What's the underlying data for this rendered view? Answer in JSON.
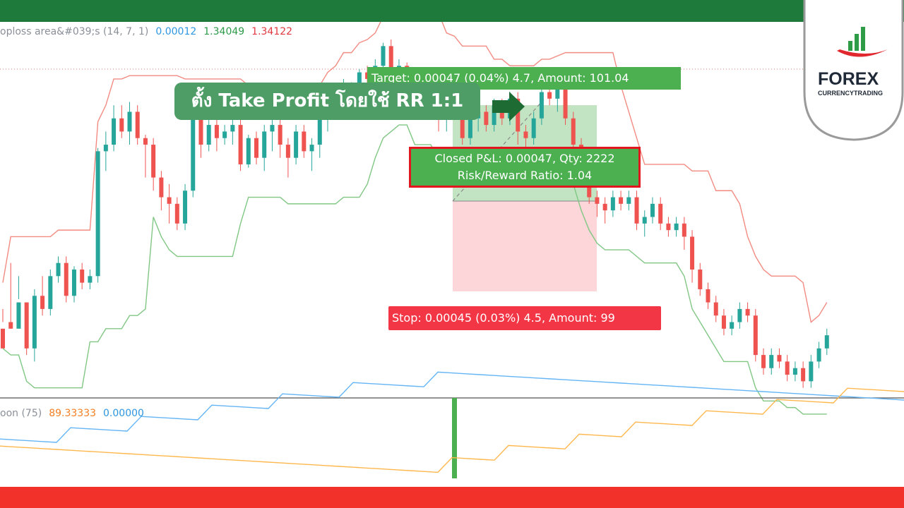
{
  "indicator_top": {
    "name": "oploss area&#039;s (14, 7, 1)",
    "v1": "0.00012",
    "v2": "1.34049",
    "v3": "1.34122"
  },
  "indicator_bottom": {
    "name": "oon (75)",
    "v1": "89.33333",
    "v2": "0.00000"
  },
  "callout": {
    "text": "ตั้ง Take Profit โดยใช้ RR 1:1"
  },
  "target_label": {
    "text": "Target: 0.00047 (0.04%) 4.7, Amount: 101.04"
  },
  "stop_label": {
    "text": "Stop: 0.00045 (0.03%) 4.5, Amount: 99"
  },
  "pnl": {
    "line1": "Closed P&L: 0.00047, Qty: 2222",
    "line2": "Risk/Reward Ratio: 1.04"
  },
  "logo": {
    "title": "FOREX",
    "subtitle": "CURRENCYTRADING"
  },
  "colors": {
    "up": "#26a69a",
    "down": "#ef5350",
    "upper_band": "#f28b82",
    "lower_band": "#81c784",
    "osc_blue": "#64b5f6",
    "osc_orange": "#ffb74d",
    "target_zone": "#b7dfb9",
    "stop_zone": "#fcd1d4"
  },
  "chart_data": {
    "type": "candlestick",
    "title": "",
    "candles": [
      [
        100,
        70,
        130,
        110
      ],
      [
        110,
        100,
        200,
        100
      ],
      [
        100,
        140,
        145,
        180
      ],
      [
        140,
        70,
        140,
        60
      ],
      [
        70,
        150,
        160,
        50
      ],
      [
        150,
        130,
        180,
        120
      ],
      [
        130,
        180,
        190,
        120
      ],
      [
        180,
        200,
        210,
        170
      ],
      [
        200,
        150,
        210,
        140
      ],
      [
        150,
        190,
        195,
        140
      ],
      [
        190,
        170,
        200,
        160
      ],
      [
        170,
        180,
        190,
        160
      ],
      [
        180,
        370,
        375,
        170
      ],
      [
        370,
        380,
        400,
        340
      ],
      [
        380,
        420,
        440,
        370
      ],
      [
        420,
        400,
        440,
        390
      ],
      [
        400,
        430,
        445,
        380
      ],
      [
        430,
        390,
        440,
        380
      ],
      [
        390,
        380,
        395,
        330
      ],
      [
        380,
        330,
        390,
        310
      ],
      [
        330,
        300,
        340,
        280
      ],
      [
        300,
        290,
        320,
        260
      ],
      [
        290,
        260,
        300,
        250
      ],
      [
        260,
        310,
        320,
        250
      ],
      [
        310,
        420,
        440,
        300
      ],
      [
        420,
        380,
        430,
        360
      ],
      [
        380,
        410,
        420,
        370
      ],
      [
        410,
        390,
        420,
        370
      ],
      [
        390,
        400,
        410,
        380
      ],
      [
        400,
        410,
        420,
        380
      ],
      [
        410,
        350,
        420,
        340
      ],
      [
        350,
        390,
        395,
        345
      ],
      [
        390,
        360,
        400,
        350
      ],
      [
        360,
        400,
        410,
        340
      ],
      [
        400,
        410,
        420,
        370
      ],
      [
        410,
        380,
        420,
        360
      ],
      [
        380,
        360,
        390,
        330
      ],
      [
        360,
        400,
        410,
        350
      ],
      [
        400,
        370,
        410,
        360
      ],
      [
        370,
        380,
        390,
        340
      ],
      [
        380,
        420,
        430,
        360
      ],
      [
        420,
        440,
        450,
        400
      ],
      [
        440,
        450,
        460,
        430
      ],
      [
        450,
        460,
        480,
        440
      ],
      [
        460,
        470,
        475,
        450
      ],
      [
        470,
        490,
        495,
        460
      ],
      [
        490,
        480,
        500,
        470
      ],
      [
        480,
        500,
        510,
        470
      ],
      [
        500,
        530,
        535,
        480
      ],
      [
        530,
        490,
        540,
        480
      ],
      [
        490,
        500,
        510,
        470
      ],
      [
        500,
        460,
        505,
        450
      ],
      [
        460,
        430,
        470,
        420
      ],
      [
        430,
        470,
        480,
        420
      ],
      [
        470,
        480,
        490,
        460
      ],
      [
        480,
        420,
        490,
        400
      ],
      [
        420,
        460,
        470,
        400
      ],
      [
        460,
        440,
        470,
        420
      ],
      [
        440,
        390,
        450,
        380
      ],
      [
        390,
        420,
        430,
        380
      ],
      [
        420,
        430,
        440,
        400
      ],
      [
        430,
        410,
        440,
        400
      ],
      [
        410,
        440,
        450,
        400
      ],
      [
        440,
        420,
        450,
        410
      ],
      [
        420,
        450,
        460,
        410
      ],
      [
        450,
        400,
        460,
        380
      ],
      [
        400,
        390,
        410,
        370
      ],
      [
        390,
        420,
        430,
        380
      ],
      [
        420,
        460,
        470,
        410
      ],
      [
        460,
        450,
        470,
        440
      ],
      [
        450,
        470,
        475,
        430
      ],
      [
        470,
        420,
        480,
        410
      ],
      [
        420,
        380,
        430,
        360
      ],
      [
        380,
        340,
        390,
        320
      ],
      [
        340,
        300,
        350,
        290
      ],
      [
        300,
        290,
        310,
        270
      ],
      [
        290,
        280,
        300,
        260
      ],
      [
        280,
        300,
        310,
        270
      ],
      [
        300,
        290,
        310,
        280
      ],
      [
        290,
        300,
        310,
        280
      ],
      [
        300,
        260,
        310,
        250
      ],
      [
        260,
        270,
        280,
        240
      ],
      [
        270,
        290,
        300,
        260
      ],
      [
        290,
        260,
        300,
        250
      ],
      [
        260,
        250,
        270,
        240
      ],
      [
        250,
        260,
        270,
        240
      ],
      [
        260,
        240,
        270,
        220
      ],
      [
        240,
        190,
        250,
        170
      ],
      [
        190,
        160,
        200,
        150
      ],
      [
        160,
        140,
        170,
        130
      ],
      [
        140,
        120,
        150,
        110
      ],
      [
        120,
        100,
        130,
        90
      ],
      [
        100,
        110,
        120,
        90
      ],
      [
        110,
        130,
        140,
        100
      ],
      [
        130,
        120,
        140,
        110
      ],
      [
        120,
        60,
        130,
        50
      ],
      [
        60,
        40,
        70,
        30
      ],
      [
        40,
        60,
        70,
        30
      ],
      [
        60,
        50,
        70,
        40
      ],
      [
        50,
        30,
        60,
        20
      ],
      [
        30,
        40,
        50,
        20
      ],
      [
        40,
        20,
        50,
        10
      ],
      [
        20,
        50,
        60,
        10
      ],
      [
        50,
        70,
        80,
        40
      ],
      [
        70,
        90,
        100,
        60
      ]
    ],
    "series": [
      {
        "name": "",
        "values": []
      }
    ],
    "xlabel": "",
    "ylabel": ""
  }
}
